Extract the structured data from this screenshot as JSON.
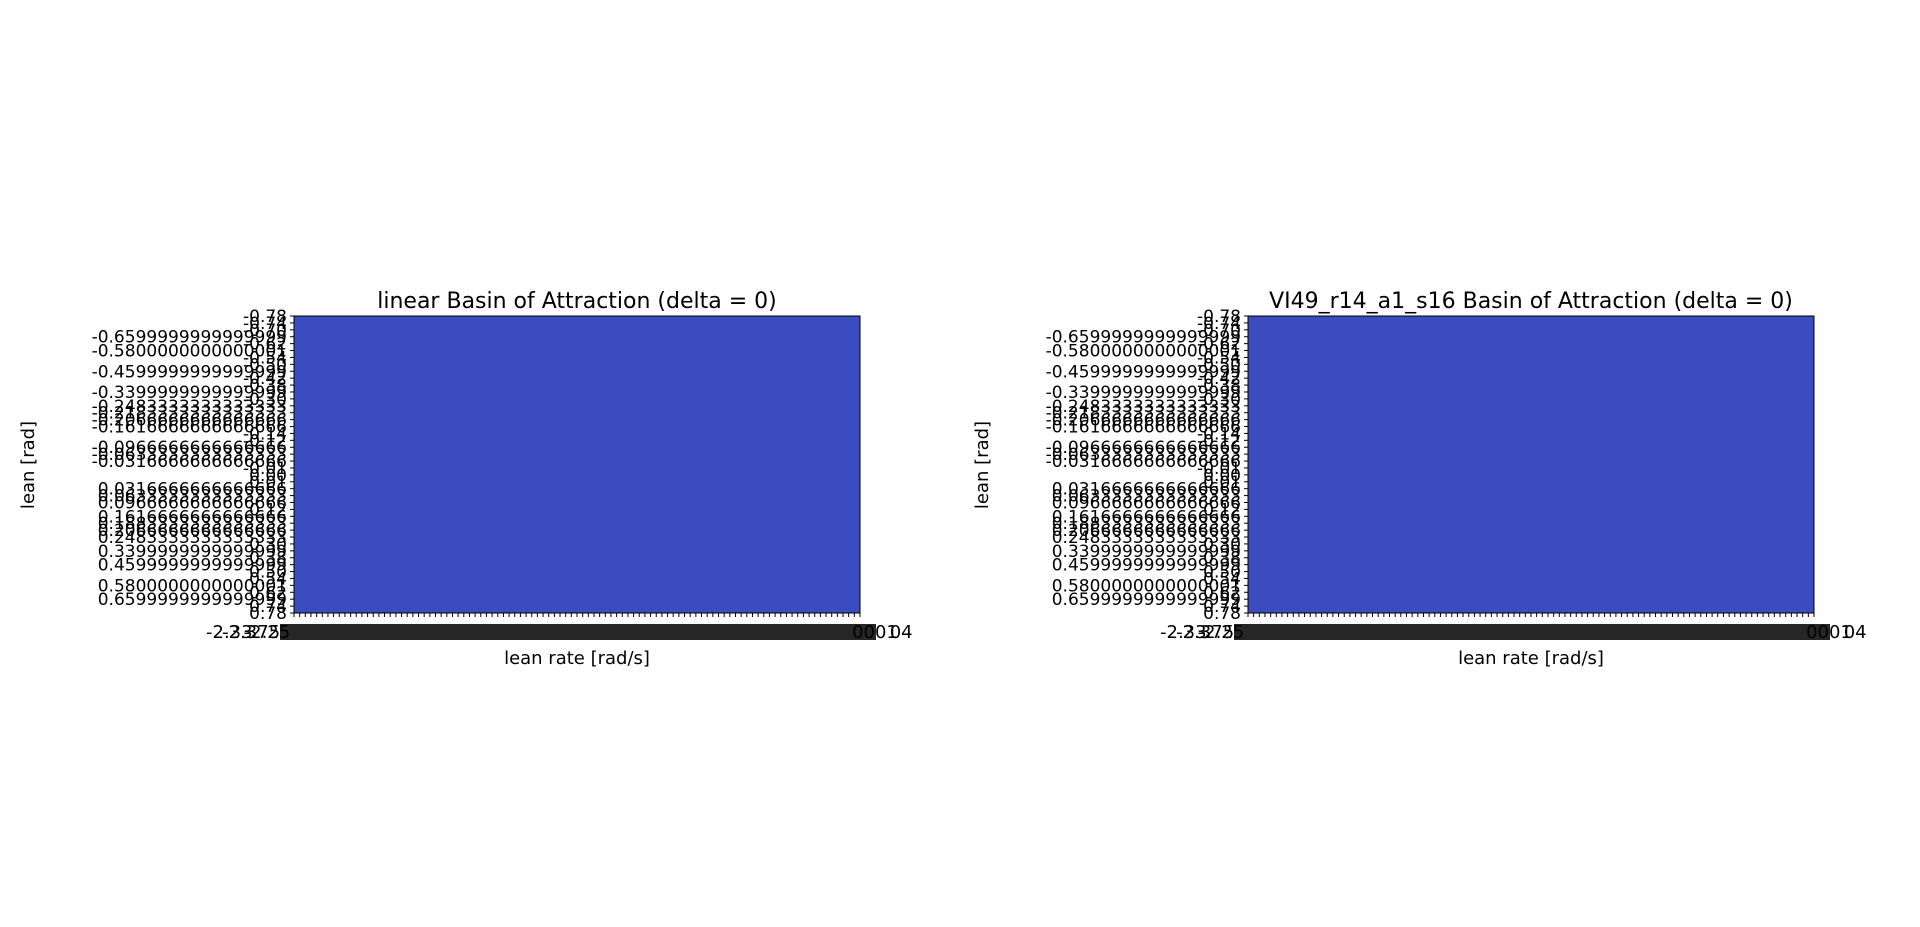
{
  "chart_data": [
    {
      "type": "heatmap",
      "title": "linear Basin of Attraction (delta = 0)",
      "xlabel": "lean rate [rad/s]",
      "ylabel": "lean [rad]",
      "fill_color": "#3b4cc0",
      "values_uniform": 0,
      "x_tick_labels_visible": [
        "-2.33",
        "-2.375",
        "-2.25",
        "0001",
        "04"
      ],
      "y_tick_labels": [
        "-0.78",
        "-0.74",
        "-0.70",
        "-0.6599999999999999",
        "-0.62",
        "-0.5800000000000001",
        "-0.54",
        "-0.50",
        "-0.4599999999999999",
        "-0.42",
        "-0.38",
        "-0.3399999999999999",
        "-0.30",
        "-0.2483333333333333",
        "-0.2183333333333333",
        "-0.2066666666666666",
        "-0.1616666666666666",
        "-0.14",
        "-0.12",
        "-0.0966666666666666",
        "-0.0633333333333333",
        "-0.0316666666666666",
        "-0.01",
        "0.00",
        "0.01",
        "0.0316666666666666",
        "0.0633333333333333",
        "0.0966666666666666",
        "0.12",
        "0.1616666666666666",
        "0.1883333333333333",
        "0.2066666666666666",
        "0.2483333333333333",
        "0.30",
        "0.3399999999999999",
        "0.38",
        "0.4599999999999999",
        "0.50",
        "0.54",
        "0.5800000000000001",
        "0.62",
        "0.6599999999999999",
        "0.74",
        "0.78"
      ]
    },
    {
      "type": "heatmap",
      "title": "VI49_r14_a1_s16 Basin of Attraction (delta = 0)",
      "xlabel": "lean rate [rad/s]",
      "ylabel": "lean [rad]",
      "fill_color": "#3b4cc0",
      "values_uniform": 0,
      "x_tick_labels_visible": [
        "-2.33",
        "-2.375",
        "-2.25",
        "0001",
        "04"
      ],
      "y_tick_labels": [
        "-0.78",
        "-0.74",
        "-0.70",
        "-0.6599999999999999",
        "-0.62",
        "-0.5800000000000001",
        "-0.54",
        "-0.50",
        "-0.4599999999999999",
        "-0.42",
        "-0.38",
        "-0.3399999999999999",
        "-0.30",
        "-0.2483333333333333",
        "-0.2183333333333333",
        "-0.2066666666666666",
        "-0.1616666666666666",
        "-0.14",
        "-0.12",
        "-0.0966666666666666",
        "-0.0633333333333333",
        "-0.0316666666666666",
        "-0.01",
        "0.00",
        "0.01",
        "0.0316666666666666",
        "0.0633333333333333",
        "0.0966666666666666",
        "0.12",
        "0.1616666666666666",
        "0.1883333333333333",
        "0.2066666666666666",
        "0.2483333333333333",
        "0.30",
        "0.3399999999999999",
        "0.38",
        "0.4599999999999999",
        "0.50",
        "0.54",
        "0.5800000000000001",
        "0.62",
        "0.6599999999999999",
        "0.74",
        "0.78"
      ]
    }
  ]
}
